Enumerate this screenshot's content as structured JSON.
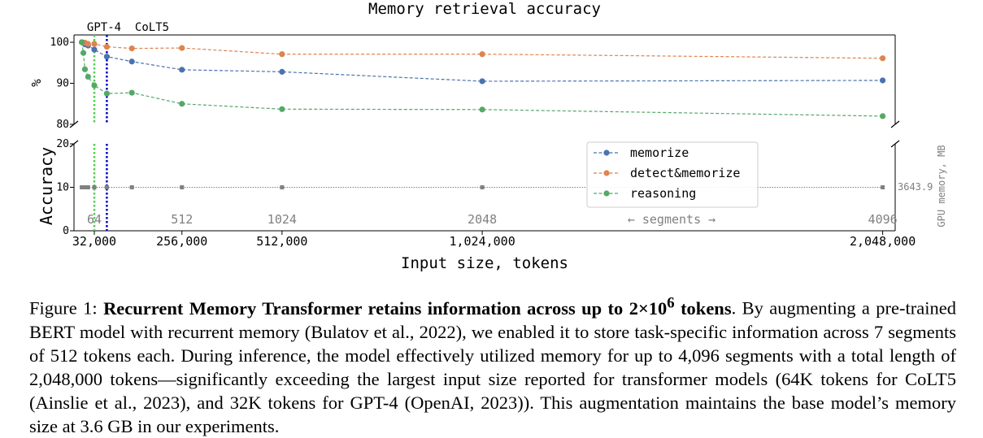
{
  "chart_data": {
    "type": "line",
    "title": "Memory retrieval accuracy",
    "xlabel": "Input size, tokens",
    "ylabel": "Accuracy",
    "ylabel_top": "%",
    "y2label": "GPU memory, MB",
    "x_ticks": [
      "32,000",
      "256,000",
      "512,000",
      "1,024,000",
      "2,048,000"
    ],
    "x_tick_values": [
      32000,
      256000,
      512000,
      1024000,
      2048000
    ],
    "segments_ticks": [
      "64",
      "512",
      "1024",
      "2048",
      "4096"
    ],
    "segments_tick_values": [
      32000,
      256000,
      512000,
      1024000,
      2048000
    ],
    "segments_label": "← segments →",
    "xlim": [
      -20000,
      2080000
    ],
    "upper_axis": {
      "ylim": [
        80,
        100
      ],
      "ticks": [
        "80",
        "90",
        "100"
      ],
      "tick_values": [
        80,
        90,
        100
      ]
    },
    "lower_axis": {
      "ylim": [
        0,
        20
      ],
      "ticks": [
        "0",
        "10",
        "20"
      ],
      "tick_values": [
        0,
        10,
        20
      ]
    },
    "vlines": [
      {
        "label": "GPT-4",
        "x": 32000,
        "color": "#55cc55"
      },
      {
        "label": "CoLT5",
        "x": 64000,
        "color": "#0000cc"
      }
    ],
    "series": [
      {
        "name": "memorize",
        "color": "#4c72b0",
        "x": [
          0,
          8000,
          16000,
          32000,
          64000,
          128000,
          256000,
          512000,
          1024000,
          2048000
        ],
        "y": [
          100,
          99.5,
          99.2,
          98.2,
          96.5,
          95.3,
          93.3,
          92.8,
          90.5,
          90.7
        ]
      },
      {
        "name": "detect&memorize",
        "color": "#dd8452",
        "x": [
          0,
          8000,
          16000,
          32000,
          64000,
          128000,
          256000,
          512000,
          1024000,
          2048000
        ],
        "y": [
          100,
          99.9,
          99.6,
          99.6,
          98.9,
          98.5,
          98.6,
          97.1,
          97.1,
          96.1
        ]
      },
      {
        "name": "reasoning",
        "color": "#55a868",
        "x": [
          0,
          4000,
          8000,
          16000,
          32000,
          64000,
          128000,
          256000,
          512000,
          1024000,
          2048000
        ],
        "y": [
          100,
          97.4,
          93.4,
          91.6,
          89.5,
          87.5,
          87.7,
          85.0,
          83.7,
          83.6,
          82.0
        ]
      }
    ],
    "gpu_memory": {
      "value": "3643.9",
      "color": "#808080",
      "x": [
        0,
        4000,
        8000,
        16000,
        32000,
        64000,
        128000,
        256000,
        512000,
        1024000,
        2048000
      ],
      "y": 10
    },
    "legend_position": "lower-right of top panel"
  },
  "caption": {
    "prefix": "Figure 1: ",
    "bold": "Recurrent Memory Transformer retains information across up to 2×10",
    "bold_sup": "6",
    "bold_end": " tokens",
    "rest": ". By augmenting a pre-trained BERT model with recurrent memory (Bulatov et al., 2022), we enabled it to store task-specific information across 7 segments of 512 tokens each. During inference, the model effectively utilized memory for up to 4,096 segments with a total length of 2,048,000 tokens—significantly exceeding the largest input size reported for transformer models (64K tokens for CoLT5 (Ainslie et al., 2023), and 32K tokens for GPT-4 (OpenAI, 2023)). This augmentation maintains the base model’s memory size at 3.6 GB in our experiments."
  }
}
